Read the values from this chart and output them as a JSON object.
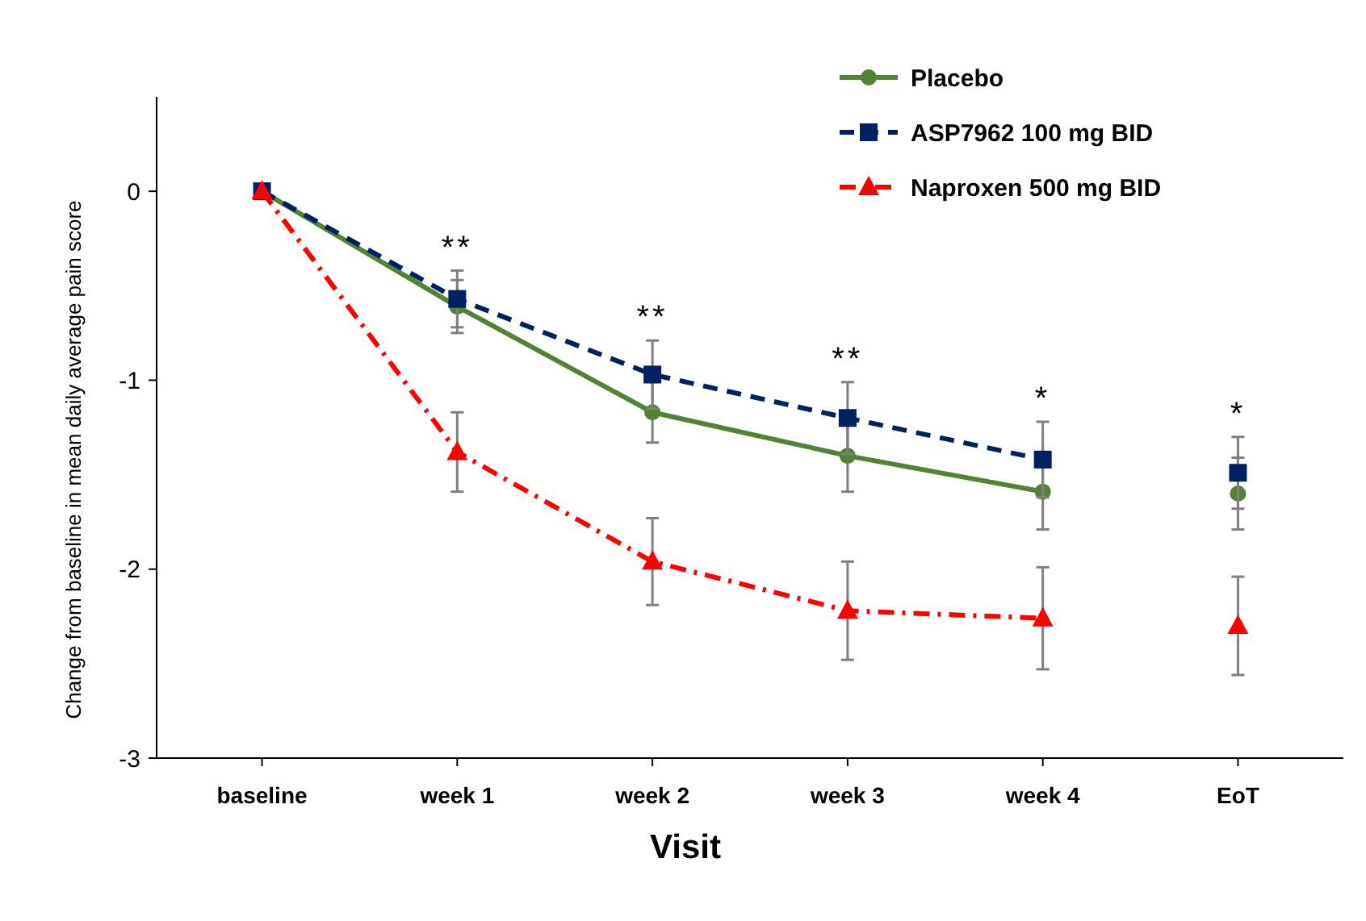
{
  "chart_data": {
    "type": "line",
    "xlabel": "Visit",
    "ylabel": "Change from baseline in mean daily average pain score",
    "categories": [
      "baseline",
      "week 1",
      "week 2",
      "week 3",
      "week 4",
      "EoT"
    ],
    "ylim": [
      -3,
      0.5
    ],
    "yticks": [
      0,
      -1,
      -2,
      -3
    ],
    "grid": false,
    "legend": "top right",
    "series": [
      {
        "name": "Placebo",
        "color": "#538135",
        "marker": "circle",
        "line_style": "solid",
        "values": [
          0,
          -0.61,
          -1.17,
          -1.4,
          -1.59,
          null
        ],
        "errors": [
          null,
          0.14,
          0.16,
          0.19,
          0.2,
          null
        ]
      },
      {
        "name": "ASP7962 100 mg BID",
        "color": "#002060",
        "marker": "square",
        "line_style": "dashed",
        "values": [
          0,
          -0.57,
          -0.97,
          -1.2,
          -1.42,
          null
        ],
        "errors": [
          null,
          0.15,
          0.18,
          0.19,
          0.2,
          null
        ]
      },
      {
        "name": "Naproxen 500 mg BID",
        "color": "#ff0000",
        "marker": "triangle",
        "line_style": "dashdot",
        "values": [
          0,
          -1.38,
          -1.96,
          -2.22,
          -2.26,
          null
        ],
        "errors": [
          null,
          0.21,
          0.23,
          0.26,
          0.27,
          null
        ]
      },
      {
        "type": "scatter",
        "color": "#538135",
        "marker": "circle",
        "x": [
          "EoT"
        ],
        "values": [
          -1.6
        ],
        "errors": [
          0.19
        ]
      },
      {
        "type": "scatter",
        "color": "#002060",
        "marker": "square",
        "x": [
          "EoT"
        ],
        "values": [
          -1.49
        ],
        "errors": [
          0.19
        ]
      },
      {
        "type": "scatter",
        "color": "#ff0000",
        "marker": "triangle",
        "x": [
          "EoT"
        ],
        "values": [
          -2.3
        ],
        "errors": [
          0.26
        ]
      }
    ],
    "annotations": [
      "**",
      "**",
      "**",
      "*",
      "*"
    ]
  }
}
